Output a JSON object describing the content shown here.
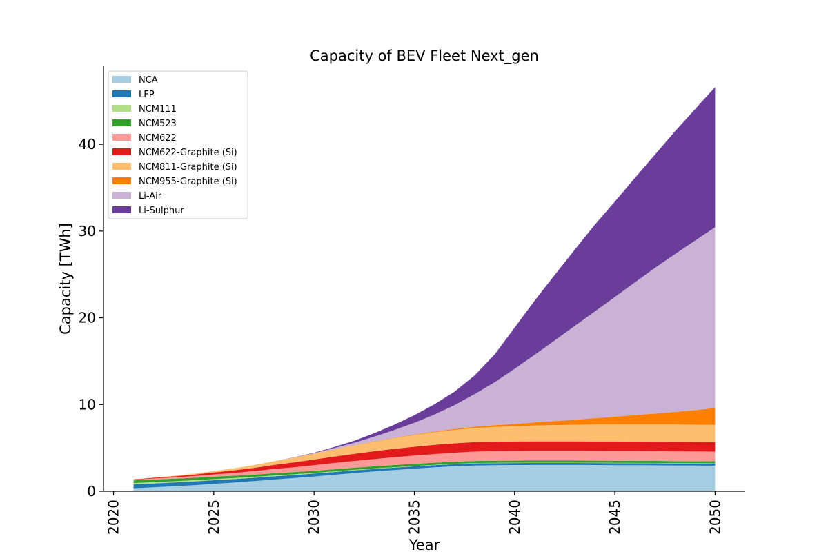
{
  "chart_data": {
    "type": "area",
    "stacked": true,
    "title": "Capacity of BEV Fleet Next_gen",
    "xlabel": "Year",
    "ylabel": "Capacity [TWh]",
    "xlim": [
      2019.5,
      2051.5
    ],
    "ylim": [
      0,
      49
    ],
    "xticks": [
      2020,
      2025,
      2030,
      2035,
      2040,
      2045,
      2050
    ],
    "yticks": [
      0,
      10,
      20,
      30,
      40
    ],
    "grid": false,
    "legend_position": "top-left",
    "x": [
      2021,
      2022,
      2023,
      2024,
      2025,
      2026,
      2027,
      2028,
      2029,
      2030,
      2031,
      2032,
      2033,
      2034,
      2035,
      2036,
      2037,
      2038,
      2039,
      2040,
      2041,
      2042,
      2043,
      2044,
      2045,
      2046,
      2047,
      2048,
      2049,
      2050
    ],
    "series": [
      {
        "name": "NCA",
        "color": "#a6cee3",
        "values": [
          0.35,
          0.45,
          0.57,
          0.7,
          0.85,
          1.0,
          1.17,
          1.35,
          1.52,
          1.7,
          1.9,
          2.1,
          2.28,
          2.45,
          2.6,
          2.75,
          2.88,
          2.97,
          3.0,
          3.02,
          3.03,
          3.03,
          3.03,
          3.02,
          3.01,
          3.0,
          2.99,
          2.97,
          2.96,
          2.95
        ]
      },
      {
        "name": "LFP",
        "color": "#1f78b4",
        "values": [
          0.45,
          0.45,
          0.44,
          0.43,
          0.42,
          0.4,
          0.38,
          0.37,
          0.35,
          0.34,
          0.32,
          0.31,
          0.29,
          0.28,
          0.27,
          0.26,
          0.25,
          0.24,
          0.24,
          0.23,
          0.23,
          0.23,
          0.23,
          0.23,
          0.23,
          0.23,
          0.23,
          0.23,
          0.23,
          0.23
        ]
      },
      {
        "name": "NCM111",
        "color": "#b2df8a",
        "values": [
          0.15,
          0.15,
          0.14,
          0.14,
          0.13,
          0.12,
          0.11,
          0.1,
          0.09,
          0.08,
          0.07,
          0.06,
          0.06,
          0.05,
          0.05,
          0.04,
          0.04,
          0.04,
          0.04,
          0.04,
          0.04,
          0.04,
          0.04,
          0.04,
          0.04,
          0.04,
          0.04,
          0.04,
          0.04,
          0.04
        ]
      },
      {
        "name": "NCM523",
        "color": "#33a02c",
        "values": [
          0.3,
          0.3,
          0.29,
          0.28,
          0.28,
          0.27,
          0.26,
          0.26,
          0.25,
          0.25,
          0.25,
          0.24,
          0.24,
          0.24,
          0.24,
          0.24,
          0.24,
          0.24,
          0.24,
          0.24,
          0.24,
          0.24,
          0.24,
          0.24,
          0.24,
          0.24,
          0.24,
          0.24,
          0.24,
          0.24
        ]
      },
      {
        "name": "NCM622",
        "color": "#fb9a99",
        "values": [
          0.08,
          0.12,
          0.16,
          0.2,
          0.26,
          0.32,
          0.4,
          0.48,
          0.56,
          0.64,
          0.72,
          0.78,
          0.84,
          0.9,
          0.95,
          1.0,
          1.04,
          1.08,
          1.1,
          1.11,
          1.12,
          1.12,
          1.12,
          1.12,
          1.12,
          1.12,
          1.12,
          1.12,
          1.11,
          1.11
        ]
      },
      {
        "name": "NCM622-Graphite (Si)",
        "color": "#e31a1c",
        "values": [
          0.05,
          0.08,
          0.12,
          0.17,
          0.23,
          0.3,
          0.38,
          0.47,
          0.56,
          0.65,
          0.74,
          0.82,
          0.9,
          0.97,
          1.02,
          1.06,
          1.08,
          1.1,
          1.1,
          1.1,
          1.1,
          1.1,
          1.1,
          1.1,
          1.1,
          1.1,
          1.1,
          1.1,
          1.1,
          1.1
        ]
      },
      {
        "name": "NCM811-Graphite (Si)",
        "color": "#fdbf6f",
        "values": [
          0.01,
          0.03,
          0.06,
          0.1,
          0.16,
          0.23,
          0.32,
          0.43,
          0.55,
          0.68,
          0.82,
          0.96,
          1.1,
          1.23,
          1.35,
          1.46,
          1.55,
          1.63,
          1.7,
          1.76,
          1.82,
          1.87,
          1.91,
          1.94,
          1.96,
          1.98,
          1.99,
          2.0,
          2.0,
          2.0
        ]
      },
      {
        "name": "NCM955-Graphite (Si)",
        "color": "#ff7f00",
        "values": [
          0,
          0,
          0,
          0,
          0,
          0,
          0,
          0,
          0,
          0,
          0.01,
          0.02,
          0.03,
          0.04,
          0.06,
          0.08,
          0.1,
          0.14,
          0.19,
          0.26,
          0.35,
          0.46,
          0.59,
          0.74,
          0.9,
          1.07,
          1.25,
          1.45,
          1.67,
          1.93
        ]
      },
      {
        "name": "Li-Air",
        "color": "#cab2d6",
        "values": [
          0,
          0,
          0,
          0,
          0,
          0,
          0,
          0,
          0.02,
          0.06,
          0.15,
          0.3,
          0.55,
          0.9,
          1.35,
          1.95,
          2.75,
          3.75,
          4.95,
          6.35,
          7.8,
          9.3,
          10.8,
          12.3,
          13.8,
          15.3,
          16.8,
          18.2,
          19.55,
          20.85
        ]
      },
      {
        "name": "Li-Sulphur",
        "color": "#6a3d9a",
        "values": [
          0,
          0,
          0,
          0,
          0,
          0,
          0,
          0,
          0.02,
          0.05,
          0.12,
          0.23,
          0.4,
          0.62,
          0.88,
          1.18,
          1.55,
          2.15,
          3.2,
          4.75,
          6.25,
          7.55,
          8.8,
          10.0,
          11.0,
          12.05,
          13.05,
          14.15,
          15.15,
          16.15
        ]
      }
    ]
  }
}
